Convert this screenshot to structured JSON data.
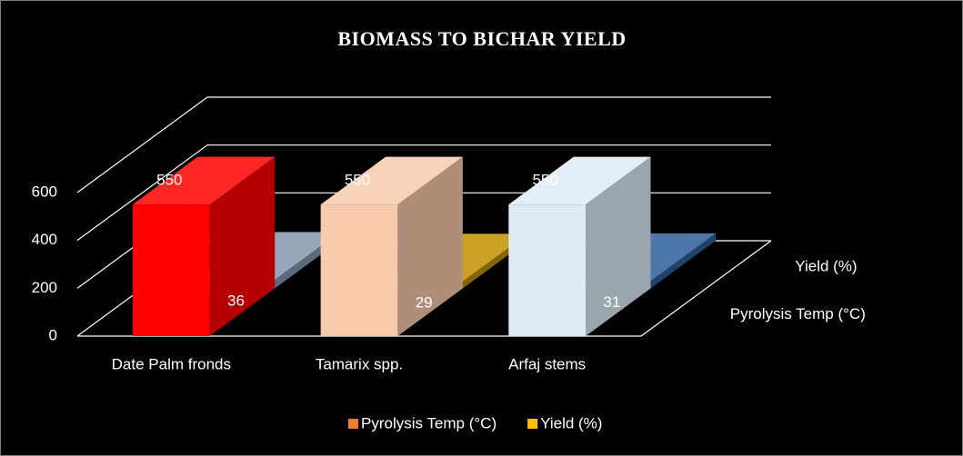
{
  "chart_data": {
    "type": "bar",
    "title": "BIOMASS TO BICHAR YIELD",
    "categories": [
      "Date Palm fronds",
      "Tamarix spp.",
      "Arfaj stems"
    ],
    "series": [
      {
        "name": "Pyrolysis Temp (°C)",
        "color": "#ed7d31",
        "point_colors": [
          "#ff0000",
          "#f8cbad",
          "#deebf7"
        ],
        "values": [
          550,
          550,
          550
        ]
      },
      {
        "name": "Yield (%)",
        "color": "#ffc000",
        "point_colors": [
          "#8497b0",
          "#bf9000",
          "#2e5f99"
        ],
        "values": [
          36,
          29,
          31
        ]
      }
    ],
    "ylim": [
      0,
      600
    ],
    "yticks": [
      0,
      200,
      400,
      600
    ],
    "grid": true,
    "legend": "bottom"
  }
}
